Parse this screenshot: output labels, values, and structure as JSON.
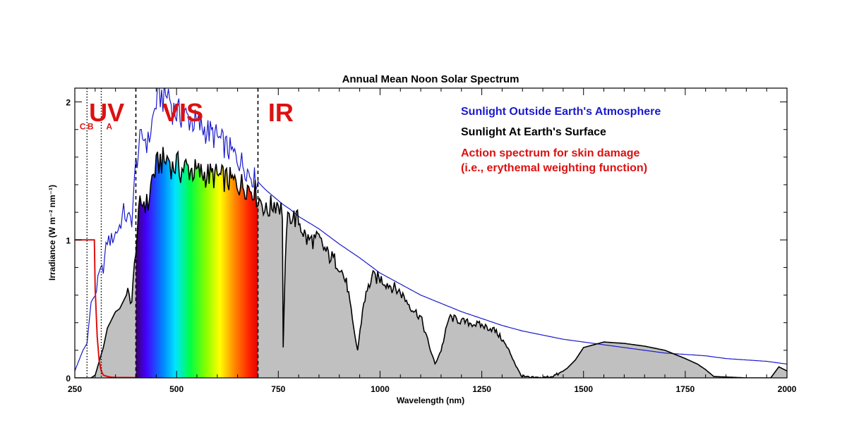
{
  "chart_data": {
    "type": "area",
    "title": "Annual Mean Noon Solar Spectrum",
    "xlabel": "Wavelength (nm)",
    "ylabel": "Irradiance (W m⁻² nm⁻¹)",
    "xlim": [
      250,
      2000
    ],
    "ylim": [
      0,
      2.1
    ],
    "x_ticks": [
      250,
      500,
      750,
      1000,
      1250,
      1500,
      1750,
      2000
    ],
    "x_tick_labels": [
      "250",
      "500",
      "750",
      "1000",
      "1250",
      "1500",
      "1750",
      "2000"
    ],
    "y_ticks": [
      0,
      1,
      2
    ],
    "y_tick_labels": [
      "0",
      "1",
      "2"
    ],
    "region_boundaries": [
      {
        "x": 280,
        "style": "dotted"
      },
      {
        "x": 315,
        "style": "dotted"
      },
      {
        "x": 400,
        "style": "dashed"
      },
      {
        "x": 700,
        "style": "dashed"
      }
    ],
    "region_labels": [
      {
        "text": "UV",
        "size": "large",
        "x": 285,
        "y": 1.86
      },
      {
        "text": "VIS",
        "size": "large",
        "x": 465,
        "y": 1.86
      },
      {
        "text": "IR",
        "size": "large",
        "x": 725,
        "y": 1.86
      },
      {
        "text": "C",
        "size": "small",
        "x": 262,
        "y": 1.8
      },
      {
        "text": "B",
        "size": "small",
        "x": 281,
        "y": 1.8
      },
      {
        "text": "A",
        "size": "small",
        "x": 327,
        "y": 1.8
      }
    ],
    "legend": [
      {
        "text": "Sunlight Outside Earth's Atmosphere",
        "color": "#1a1acc"
      },
      {
        "text": "Sunlight At Earth's Surface",
        "color": "#000000"
      },
      {
        "text": "Action spectrum for skin damage",
        "color": "#dd1111"
      },
      {
        "text": "(i.e., erythemal weighting function)",
        "color": "#dd1111"
      }
    ],
    "legend_placement": "top-right",
    "visible_band": [
      400,
      700
    ],
    "series": [
      {
        "name": "Sunlight Outside Earth's Atmosphere",
        "color": "#1a1acc",
        "x": [
          250,
          270,
          280,
          290,
          300,
          310,
          320,
          330,
          340,
          350,
          360,
          370,
          380,
          390,
          400,
          410,
          420,
          430,
          440,
          450,
          460,
          470,
          480,
          490,
          500,
          520,
          540,
          560,
          580,
          600,
          620,
          640,
          660,
          680,
          700,
          720,
          740,
          760,
          780,
          800,
          850,
          900,
          950,
          1000,
          1050,
          1100,
          1150,
          1200,
          1250,
          1300,
          1350,
          1400,
          1450,
          1500,
          1550,
          1600,
          1650,
          1700,
          1750,
          1800,
          1850,
          1900,
          1950,
          2000
        ],
        "y": [
          0.05,
          0.2,
          0.25,
          0.55,
          0.6,
          0.75,
          0.8,
          1.0,
          1.0,
          1.05,
          1.1,
          1.2,
          1.15,
          1.15,
          1.55,
          1.7,
          1.75,
          1.7,
          1.85,
          2.0,
          2.05,
          2.02,
          2.07,
          1.95,
          1.92,
          1.9,
          1.86,
          1.82,
          1.78,
          1.74,
          1.68,
          1.62,
          1.56,
          1.48,
          1.42,
          1.36,
          1.31,
          1.26,
          1.22,
          1.17,
          1.08,
          0.97,
          0.87,
          0.76,
          0.68,
          0.6,
          0.54,
          0.48,
          0.43,
          0.38,
          0.34,
          0.31,
          0.28,
          0.26,
          0.24,
          0.22,
          0.2,
          0.18,
          0.17,
          0.16,
          0.14,
          0.13,
          0.12,
          0.1
        ]
      },
      {
        "name": "Sunlight At Earth's Surface",
        "color": "#000000",
        "x": [
          250,
          280,
          290,
          300,
          310,
          320,
          330,
          340,
          350,
          360,
          380,
          390,
          400,
          410,
          420,
          430,
          440,
          450,
          460,
          470,
          480,
          490,
          500,
          510,
          520,
          540,
          560,
          580,
          600,
          620,
          640,
          660,
          680,
          690,
          700,
          710,
          720,
          740,
          750,
          760,
          762,
          770,
          780,
          800,
          820,
          850,
          870,
          900,
          920,
          935,
          945,
          960,
          980,
          1000,
          1050,
          1080,
          1100,
          1120,
          1135,
          1150,
          1170,
          1200,
          1250,
          1280,
          1300,
          1320,
          1340,
          1350,
          1370,
          1400,
          1420,
          1440,
          1460,
          1480,
          1500,
          1550,
          1600,
          1650,
          1700,
          1750,
          1780,
          1800,
          1820,
          1900,
          1960,
          1980,
          2000
        ],
        "y": [
          0,
          0,
          0,
          0.02,
          0.12,
          0.22,
          0.36,
          0.42,
          0.48,
          0.5,
          0.62,
          0.55,
          0.95,
          1.25,
          1.28,
          1.25,
          1.45,
          1.52,
          1.58,
          1.56,
          1.6,
          1.52,
          1.55,
          1.5,
          1.53,
          1.5,
          1.48,
          1.47,
          1.46,
          1.44,
          1.42,
          1.4,
          1.38,
          1.37,
          1.3,
          1.28,
          1.2,
          1.27,
          1.27,
          1.2,
          0.22,
          1.1,
          1.18,
          1.14,
          1.0,
          1.0,
          0.9,
          0.82,
          0.66,
          0.35,
          0.2,
          0.55,
          0.73,
          0.72,
          0.62,
          0.5,
          0.44,
          0.24,
          0.1,
          0.2,
          0.44,
          0.41,
          0.38,
          0.35,
          0.28,
          0.18,
          0.05,
          0.01,
          0.0,
          0.0,
          0.01,
          0.03,
          0.07,
          0.13,
          0.22,
          0.26,
          0.25,
          0.23,
          0.2,
          0.14,
          0.1,
          0.06,
          0.01,
          0.0,
          0.0,
          0.08,
          0.05
        ]
      },
      {
        "name": "Action spectrum for skin damage",
        "color": "#dd1111",
        "x": [
          250,
          298,
          300,
          305,
          310,
          315,
          320,
          330,
          340,
          350,
          400
        ],
        "y": [
          1.0,
          1.0,
          0.65,
          0.3,
          0.12,
          0.05,
          0.02,
          0.01,
          0.005,
          0.003,
          0.002
        ]
      }
    ]
  }
}
